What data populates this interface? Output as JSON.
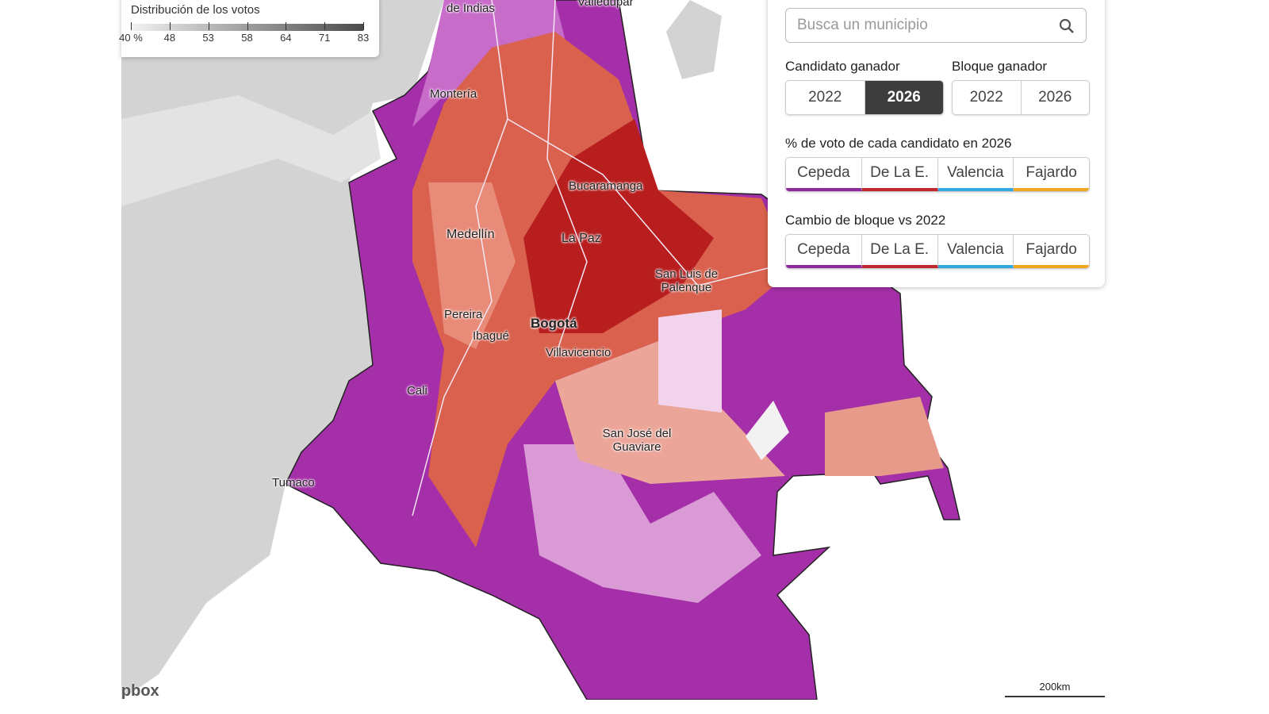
{
  "legend": {
    "title": "Distribución de los votos",
    "ticks": [
      "40 %",
      "48",
      "53",
      "58",
      "64",
      "71",
      "83"
    ]
  },
  "places": [
    "Valledupar",
    "de Indias",
    "Montería",
    "Bucaramanga",
    "Medellín",
    "La Paz",
    "San Luis de Palenque",
    "Pereira",
    "Bogotá",
    "Ibagué",
    "Villavicencio",
    "Cali",
    "San José del Guaviare",
    "Tumaco"
  ],
  "search": {
    "placeholder": "Busca un municipio"
  },
  "winner_candidate": {
    "label": "Candidato ganador",
    "options": [
      "2022",
      "2026"
    ]
  },
  "winner_bloc": {
    "label": "Bloque ganador",
    "options": [
      "2022",
      "2026"
    ]
  },
  "vote_share": {
    "label": "% de voto de cada candidato en 2026",
    "candidates": [
      {
        "name": "Cepeda",
        "color": "#8e2a9c"
      },
      {
        "name": "De La E.",
        "color": "#c0282d"
      },
      {
        "name": "Valencia",
        "color": "#33a7e0"
      },
      {
        "name": "Fajardo",
        "color": "#f0a824"
      }
    ]
  },
  "bloc_change": {
    "label": "Cambio de bloque vs 2022",
    "candidates": [
      {
        "name": "Cepeda",
        "color": "#8e2a9c"
      },
      {
        "name": "De La E.",
        "color": "#c0282d"
      },
      {
        "name": "Valencia",
        "color": "#33a7e0"
      },
      {
        "name": "Fajardo",
        "color": "#f0a824"
      }
    ]
  },
  "scale": "200km",
  "attribution": "mapbox"
}
